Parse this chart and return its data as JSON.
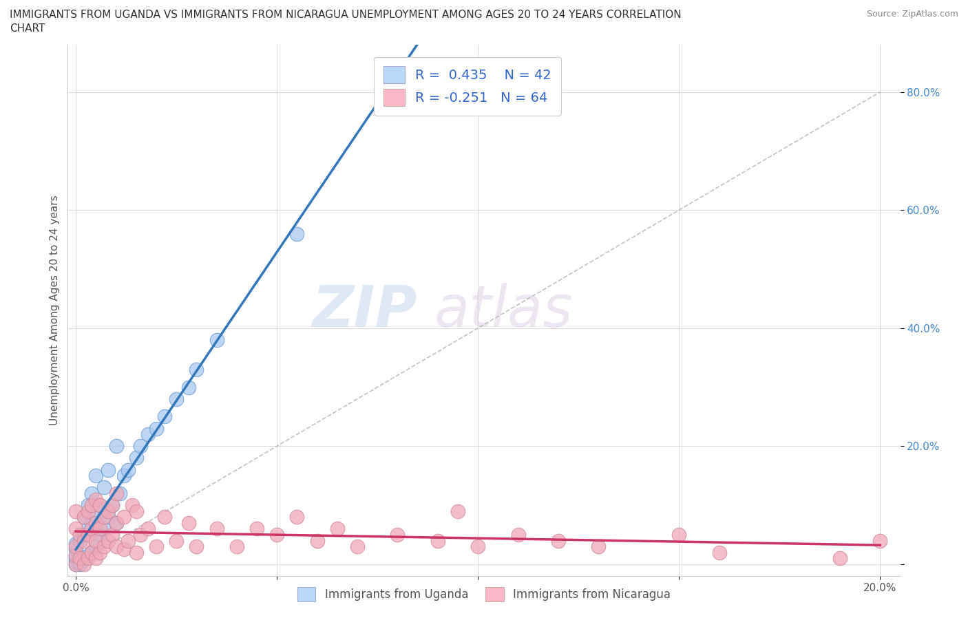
{
  "title_line1": "IMMIGRANTS FROM UGANDA VS IMMIGRANTS FROM NICARAGUA UNEMPLOYMENT AMONG AGES 20 TO 24 YEARS CORRELATION",
  "title_line2": "CHART",
  "source_text": "Source: ZipAtlas.com",
  "ylabel": "Unemployment Among Ages 20 to 24 years",
  "xlim": [
    -0.002,
    0.205
  ],
  "ylim": [
    -0.02,
    0.88
  ],
  "xticks": [
    0.0,
    0.05,
    0.1,
    0.15,
    0.2
  ],
  "yticks": [
    0.0,
    0.2,
    0.4,
    0.6,
    0.8
  ],
  "xticklabels": [
    "0.0%",
    "",
    "",
    "",
    "20.0%"
  ],
  "yticklabels": [
    "",
    "20.0%",
    "40.0%",
    "60.0%",
    "80.0%"
  ],
  "uganda_color": "#a8c8f0",
  "nicaragua_color": "#f0a8b8",
  "uganda_edge": "#6699cc",
  "nicaragua_edge": "#cc8899",
  "trendline_uganda_color": "#3377bb",
  "trendline_nicaragua_color": "#cc3366",
  "trendline_ref_color": "#aaaaaa",
  "legend_box_uganda": "#b8d8f8",
  "legend_box_nicaragua": "#f8b8c8",
  "legend_text_color": "#3366cc",
  "R_uganda": 0.435,
  "N_uganda": 42,
  "R_nicaragua": -0.251,
  "N_nicaragua": 64,
  "watermark_zip": "ZIP",
  "watermark_atlas": "atlas",
  "uganda_x": [
    0.0,
    0.0,
    0.0,
    0.0,
    0.0,
    0.0,
    0.001,
    0.001,
    0.002,
    0.002,
    0.002,
    0.003,
    0.003,
    0.003,
    0.004,
    0.004,
    0.004,
    0.005,
    0.005,
    0.005,
    0.006,
    0.006,
    0.007,
    0.007,
    0.008,
    0.008,
    0.009,
    0.01,
    0.01,
    0.011,
    0.012,
    0.013,
    0.015,
    0.016,
    0.018,
    0.02,
    0.022,
    0.025,
    0.028,
    0.03,
    0.035,
    0.055
  ],
  "uganda_y": [
    0.0,
    0.005,
    0.01,
    0.015,
    0.025,
    0.035,
    0.0,
    0.04,
    0.01,
    0.05,
    0.08,
    0.015,
    0.06,
    0.1,
    0.02,
    0.07,
    0.12,
    0.03,
    0.08,
    0.15,
    0.05,
    0.1,
    0.06,
    0.13,
    0.08,
    0.16,
    0.1,
    0.07,
    0.2,
    0.12,
    0.15,
    0.16,
    0.18,
    0.2,
    0.22,
    0.23,
    0.25,
    0.28,
    0.3,
    0.33,
    0.38,
    0.56
  ],
  "nicaragua_x": [
    0.0,
    0.0,
    0.0,
    0.0,
    0.0,
    0.001,
    0.001,
    0.002,
    0.002,
    0.002,
    0.003,
    0.003,
    0.003,
    0.004,
    0.004,
    0.004,
    0.005,
    0.005,
    0.005,
    0.005,
    0.006,
    0.006,
    0.006,
    0.007,
    0.007,
    0.008,
    0.008,
    0.009,
    0.009,
    0.01,
    0.01,
    0.01,
    0.012,
    0.012,
    0.013,
    0.014,
    0.015,
    0.015,
    0.016,
    0.018,
    0.02,
    0.022,
    0.025,
    0.028,
    0.03,
    0.035,
    0.04,
    0.045,
    0.05,
    0.055,
    0.06,
    0.065,
    0.07,
    0.08,
    0.09,
    0.095,
    0.1,
    0.11,
    0.12,
    0.13,
    0.15,
    0.16,
    0.19,
    0.2
  ],
  "nicaragua_y": [
    0.0,
    0.015,
    0.03,
    0.06,
    0.09,
    0.01,
    0.05,
    0.0,
    0.04,
    0.08,
    0.01,
    0.05,
    0.09,
    0.02,
    0.06,
    0.1,
    0.01,
    0.04,
    0.07,
    0.11,
    0.02,
    0.06,
    0.1,
    0.03,
    0.08,
    0.04,
    0.09,
    0.05,
    0.1,
    0.03,
    0.07,
    0.12,
    0.025,
    0.08,
    0.04,
    0.1,
    0.02,
    0.09,
    0.05,
    0.06,
    0.03,
    0.08,
    0.04,
    0.07,
    0.03,
    0.06,
    0.03,
    0.06,
    0.05,
    0.08,
    0.04,
    0.06,
    0.03,
    0.05,
    0.04,
    0.09,
    0.03,
    0.05,
    0.04,
    0.03,
    0.05,
    0.02,
    0.01,
    0.04
  ]
}
